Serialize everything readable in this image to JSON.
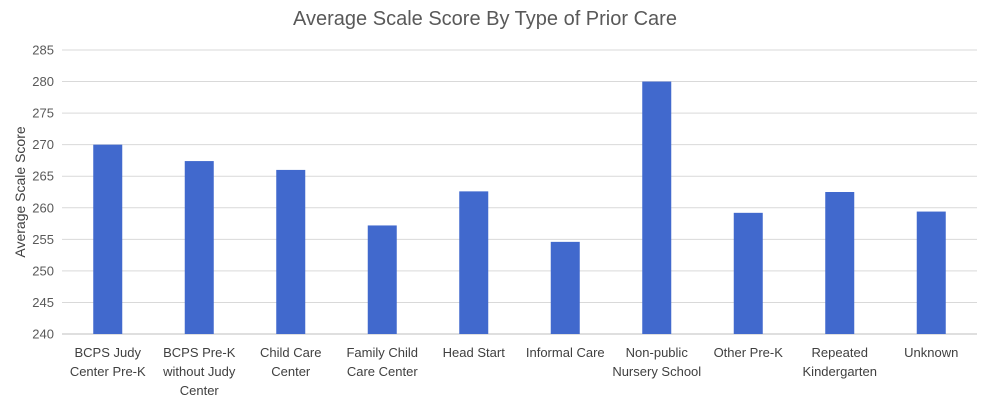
{
  "chart_data": {
    "type": "bar",
    "title": "Average Scale Score By Type of Prior Care",
    "xlabel": "",
    "ylabel": "Average Scale Score",
    "ylim": [
      240,
      285
    ],
    "yticks": [
      240,
      245,
      250,
      255,
      260,
      265,
      270,
      275,
      280,
      285
    ],
    "grid": true,
    "legend": "none",
    "bar_color": "#4169cd",
    "categories": [
      [
        "BCPS Judy",
        "Center Pre-K"
      ],
      [
        "BCPS Pre-K",
        "without Judy",
        "Center"
      ],
      [
        "Child Care",
        "Center"
      ],
      [
        "Family Child",
        "Care Center"
      ],
      [
        "Head Start"
      ],
      [
        "Informal Care"
      ],
      [
        "Non-public",
        "Nursery School"
      ],
      [
        "Other Pre-K"
      ],
      [
        "Repeated",
        "Kindergarten"
      ],
      [
        "Unknown"
      ]
    ],
    "values": [
      270.0,
      267.4,
      266.0,
      257.2,
      262.6,
      254.6,
      280.0,
      259.2,
      262.5,
      259.4
    ]
  }
}
